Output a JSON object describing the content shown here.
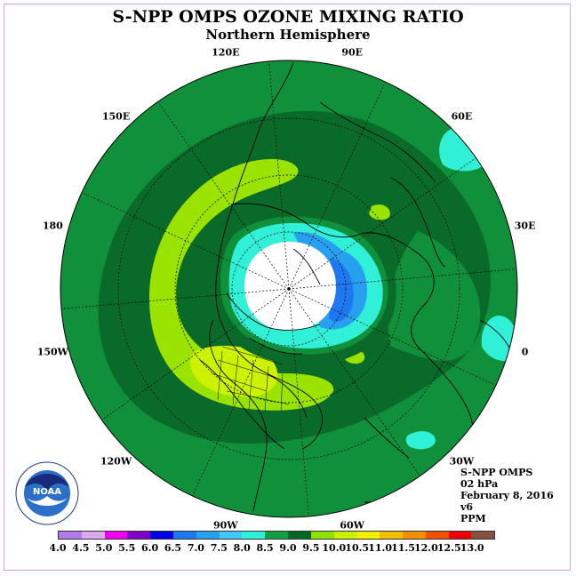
{
  "title": "S-NPP OMPS OZONE MIXING RATIO",
  "subtitle": "Northern Hemisphere",
  "longitude_labels": [
    "90E",
    "60E",
    "30E",
    "0",
    "30W",
    "60W",
    "90W",
    "120W",
    "150W",
    "180",
    "150E",
    "120E"
  ],
  "info": {
    "instrument": "S-NPP OMPS",
    "level": "02 hPa",
    "date": "February 8, 2016",
    "version": "v6",
    "units": "PPM"
  },
  "logo": {
    "name": "noaa-logo",
    "text": "NOAA",
    "ring_text": "NATIONAL OCEANIC AND ATMOSPHERIC ADMINISTRATION · U.S. DEPARTMENT OF COMMERCE"
  },
  "colorbar": {
    "labels": [
      "4.0",
      "4.5",
      "5.0",
      "5.5",
      "6.0",
      "6.5",
      "7.0",
      "7.5",
      "8.0",
      "8.5",
      "9.0",
      "9.5",
      "10.0",
      "10.5",
      "11.0",
      "11.5",
      "12.0",
      "12.5",
      "13.0"
    ],
    "colors": [
      "#b07ae8",
      "#d8a8f0",
      "#f000f0",
      "#8000c8",
      "#0000e8",
      "#1e78f0",
      "#28a0f0",
      "#40c8f8",
      "#30f0d8",
      "#10a040",
      "#006828",
      "#90e000",
      "#c8f000",
      "#f0f000",
      "#f0c000",
      "#f09000",
      "#f05000",
      "#f00000",
      "#885040"
    ]
  },
  "map_colors": {
    "background": "#10903a",
    "dark_green": "#0a6a2a",
    "yellow_green": "#9ae200",
    "yellow": "#ccf200",
    "cyan": "#30f0d8",
    "light_blue": "#28a0f0",
    "blue": "#1e78f0",
    "polar_hole": "#ffffff"
  }
}
